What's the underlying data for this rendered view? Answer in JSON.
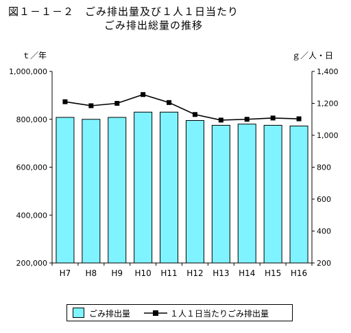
{
  "title": {
    "line1": "図１－１－２　ごみ排出量及び１人１日当たり",
    "line2": "ごみ排出総量の推移"
  },
  "units": {
    "left": "ｔ／年",
    "right": "ｇ／人・日"
  },
  "legend": {
    "bar_label": "ごみ排出量",
    "line_label": "１人１日当たりごみ排出量"
  },
  "chart_data": {
    "type": "bar",
    "categories": [
      "H7",
      "H8",
      "H9",
      "H10",
      "H11",
      "H12",
      "H13",
      "H14",
      "H15",
      "H16"
    ],
    "series": [
      {
        "name": "ごみ排出量",
        "type": "bar",
        "axis": "left",
        "values": [
          808000,
          800000,
          808000,
          830000,
          830000,
          795000,
          775000,
          780000,
          775000,
          772000
        ]
      },
      {
        "name": "１人１日当たりごみ排出量",
        "type": "line",
        "axis": "right",
        "values": [
          1210,
          1185,
          1200,
          1255,
          1205,
          1130,
          1095,
          1100,
          1108,
          1103
        ]
      }
    ],
    "y_left": {
      "ylim": [
        200000,
        1000000
      ],
      "ticks": [
        200000,
        400000,
        600000,
        800000,
        1000000
      ],
      "tick_labels": [
        "200,000",
        "400,000",
        "600,000",
        "800,000",
        "1,000,000"
      ]
    },
    "y_right": {
      "ylim": [
        200,
        1400
      ],
      "ticks": [
        200,
        400,
        600,
        800,
        1000,
        1200,
        1400
      ],
      "tick_labels": [
        "200",
        "400",
        "600",
        "800",
        "1,000",
        "1,200",
        "1,400"
      ]
    },
    "grid": false,
    "legend_position": "bottom",
    "colors": {
      "bar": "#7ff3ff",
      "line": "#000000"
    }
  }
}
